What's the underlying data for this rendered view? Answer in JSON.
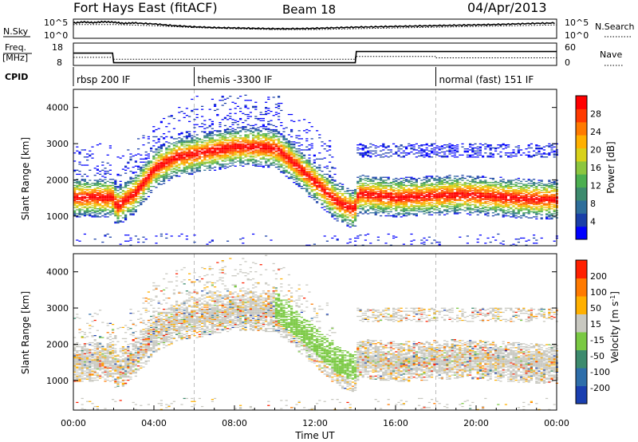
{
  "header": {
    "station": "Fort Hays East (fitACF)",
    "beam": "Beam 18",
    "date": "04/Apr/2013"
  },
  "noise_panel": {
    "left_label": "N.Sky",
    "right_label": "N.Search",
    "left_ticks": [
      "10^5",
      "10^0"
    ],
    "right_ticks": [
      "10^5",
      "10^0"
    ],
    "sky_trace": [
      [
        0,
        0.8
      ],
      [
        0.5,
        0.85
      ],
      [
        1.0,
        0.82
      ],
      [
        1.5,
        0.86
      ],
      [
        2,
        0.84
      ],
      [
        2.5,
        0.78
      ],
      [
        3,
        0.8
      ],
      [
        4,
        0.75
      ],
      [
        5,
        0.66
      ],
      [
        6,
        0.6
      ],
      [
        7,
        0.56
      ],
      [
        8,
        0.54
      ],
      [
        9,
        0.52
      ],
      [
        10,
        0.5
      ],
      [
        11,
        0.5
      ],
      [
        12,
        0.52
      ],
      [
        13,
        0.55
      ],
      [
        14,
        0.58
      ],
      [
        15,
        0.6
      ],
      [
        16,
        0.62
      ],
      [
        17,
        0.64
      ],
      [
        18,
        0.66
      ],
      [
        19,
        0.68
      ],
      [
        20,
        0.7
      ],
      [
        21,
        0.72
      ],
      [
        22,
        0.75
      ],
      [
        23,
        0.78
      ],
      [
        24,
        0.8
      ]
    ],
    "search_trace": [
      [
        0,
        0.72
      ],
      [
        2,
        0.72
      ],
      [
        4,
        0.66
      ],
      [
        6,
        0.56
      ],
      [
        8,
        0.5
      ],
      [
        10,
        0.46
      ],
      [
        12,
        0.46
      ],
      [
        14,
        0.5
      ],
      [
        16,
        0.54
      ],
      [
        18,
        0.58
      ],
      [
        20,
        0.62
      ],
      [
        22,
        0.66
      ],
      [
        24,
        0.7
      ]
    ]
  },
  "freq_panel": {
    "left_label_1": "Freq.",
    "left_label_2": "[MHz]",
    "right_label": "Nave",
    "left_ticks": [
      "18",
      "8"
    ],
    "right_ticks": [
      "60",
      "0"
    ],
    "freq_steps": [
      [
        0,
        0.55
      ],
      [
        1.95,
        0.55
      ],
      [
        2.0,
        0.12
      ],
      [
        14.0,
        0.12
      ],
      [
        14.05,
        0.62
      ],
      [
        24,
        0.62
      ]
    ],
    "nave_steps": [
      [
        0,
        0.36
      ],
      [
        2,
        0.36
      ],
      [
        2.0,
        0.28
      ],
      [
        14,
        0.28
      ],
      [
        14,
        0.4
      ],
      [
        18,
        0.4
      ],
      [
        18,
        0.34
      ],
      [
        24,
        0.34
      ]
    ]
  },
  "cpid": {
    "label": "CPID",
    "segments": [
      {
        "start": 0,
        "text": "rbsp 200 IF"
      },
      {
        "start": 6,
        "text": "themis -3300 IF"
      },
      {
        "start": 18,
        "text": "normal (fast) 151 IF"
      }
    ]
  },
  "chart_data": [
    {
      "type": "heatmap",
      "name": "power-panel",
      "ylabel": "Slant Range [km]",
      "xlabel": "",
      "x_range": [
        0,
        24
      ],
      "ylim": [
        180,
        4500
      ],
      "y_ticks": [
        1000,
        2000,
        3000,
        4000
      ],
      "x_ticks": [
        0,
        4,
        8,
        12,
        16,
        20,
        24
      ],
      "colorbar": {
        "label": "Power [dB]",
        "ticks": [
          "28",
          "24",
          "20",
          "16",
          "12",
          "8",
          "4"
        ],
        "colors": [
          "#0000ff",
          "#1a3fa8",
          "#2e6e9a",
          "#3d8b6e",
          "#4caf50",
          "#8cc63f",
          "#d8d11a",
          "#ffb000",
          "#ff7a00",
          "#ff3a00",
          "#ff0000"
        ]
      },
      "echo_band": [
        [
          0.0,
          1500
        ],
        [
          1.0,
          1500
        ],
        [
          1.9,
          1500
        ],
        [
          2.1,
          1250
        ],
        [
          3.0,
          1600
        ],
        [
          4.0,
          2300
        ],
        [
          5.0,
          2600
        ],
        [
          6.0,
          2700
        ],
        [
          7.0,
          2800
        ],
        [
          8.0,
          2900
        ],
        [
          9.0,
          2900
        ],
        [
          10.0,
          2850
        ],
        [
          11.0,
          2400
        ],
        [
          12.0,
          1900
        ],
        [
          13.0,
          1400
        ],
        [
          13.9,
          1150
        ],
        [
          14.1,
          1600
        ],
        [
          15.0,
          1550
        ],
        [
          16.0,
          1500
        ],
        [
          17.0,
          1520
        ],
        [
          18.0,
          1550
        ],
        [
          19.0,
          1580
        ],
        [
          20.0,
          1560
        ],
        [
          21.0,
          1520
        ],
        [
          22.0,
          1480
        ],
        [
          23.0,
          1450
        ],
        [
          24.0,
          1440
        ]
      ],
      "echo_width_km": 550
    },
    {
      "type": "heatmap",
      "name": "velocity-panel",
      "ylabel": "Slant Range [km]",
      "xlabel": "Time UT",
      "x_range": [
        0,
        24
      ],
      "ylim": [
        180,
        4500
      ],
      "y_ticks": [
        1000,
        2000,
        3000,
        4000
      ],
      "x_ticks": [
        0,
        4,
        8,
        12,
        16,
        20,
        24
      ],
      "x_tick_labels": [
        "00:00",
        "04:00",
        "08:00",
        "12:00",
        "16:00",
        "20:00",
        "00:00"
      ],
      "colorbar": {
        "label": "Velocity [m s-1]",
        "ticks": [
          "200",
          "100",
          "50",
          "15",
          "-15",
          "-50",
          "-100",
          "-200"
        ],
        "colors": [
          "#1a3fb0",
          "#2e6eaa",
          "#3d8b6e",
          "#7ac943",
          "#c8c8c0",
          "#ffb000",
          "#ff7a00",
          "#ff2000"
        ]
      },
      "echo_band": [
        [
          0.0,
          1500
        ],
        [
          1.0,
          1500
        ],
        [
          1.9,
          1500
        ],
        [
          2.1,
          1250
        ],
        [
          3.0,
          1600
        ],
        [
          4.0,
          2300
        ],
        [
          5.0,
          2600
        ],
        [
          6.0,
          2700
        ],
        [
          7.0,
          2800
        ],
        [
          8.0,
          2900
        ],
        [
          9.0,
          2900
        ],
        [
          10.0,
          2850
        ],
        [
          11.0,
          2400
        ],
        [
          12.0,
          1900
        ],
        [
          13.0,
          1400
        ],
        [
          13.9,
          1150
        ],
        [
          14.1,
          1600
        ],
        [
          15.0,
          1550
        ],
        [
          16.0,
          1500
        ],
        [
          17.0,
          1520
        ],
        [
          18.0,
          1550
        ],
        [
          19.0,
          1580
        ],
        [
          20.0,
          1560
        ],
        [
          21.0,
          1520
        ],
        [
          22.0,
          1480
        ],
        [
          23.0,
          1450
        ],
        [
          24.0,
          1440
        ]
      ],
      "echo_width_km": 550
    }
  ]
}
